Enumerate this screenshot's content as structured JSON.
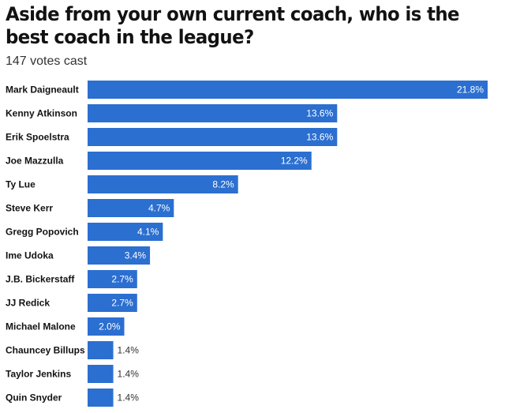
{
  "chart_data": {
    "type": "bar",
    "orientation": "horizontal",
    "title": "Aside from your own current coach, who is the best coach in the league?",
    "subtitle": "147 votes cast",
    "categories": [
      "Mark Daigneault",
      "Kenny Atkinson",
      "Erik Spoelstra",
      "Joe Mazzulla",
      "Ty Lue",
      "Steve Kerr",
      "Gregg Popovich",
      "Ime Udoka",
      "J.B. Bickerstaff",
      "JJ Redick",
      "Michael Malone",
      "Chauncey Billups",
      "Taylor Jenkins",
      "Quin Snyder"
    ],
    "values": [
      21.8,
      13.6,
      13.6,
      12.2,
      8.2,
      4.7,
      4.1,
      3.4,
      2.7,
      2.7,
      2.0,
      1.4,
      1.4,
      1.4
    ],
    "value_suffix": "%",
    "bar_color": "#2b6fd0",
    "grid": false,
    "legend": "none"
  }
}
